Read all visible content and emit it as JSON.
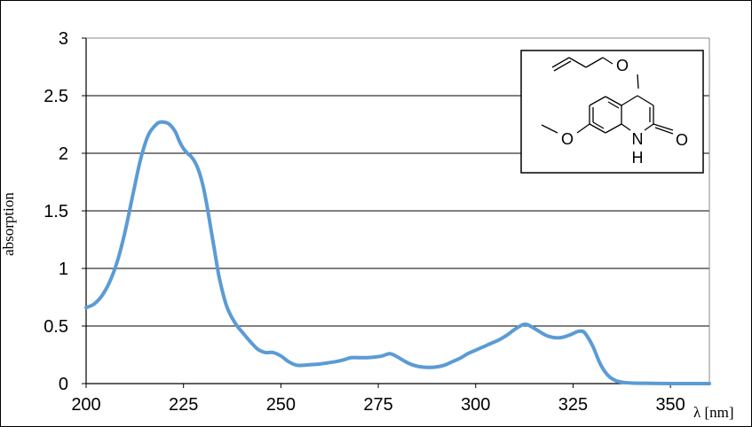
{
  "chart_data": {
    "type": "line",
    "title": "",
    "xlabel": "λ [nm]",
    "ylabel": "absorption",
    "xlim": [
      200,
      360
    ],
    "ylim": [
      0,
      3
    ],
    "x_ticks": [
      200,
      225,
      250,
      275,
      300,
      325,
      350
    ],
    "y_ticks": [
      0,
      0.5,
      1,
      1.5,
      2,
      2.5,
      3
    ],
    "y_tick_labels": [
      "0",
      "0.5",
      "1",
      "1.5",
      "2",
      "2.5",
      "3"
    ],
    "grid": "horizontal",
    "line_color": "#5b9bd5",
    "series": [
      {
        "x": [
          200,
          202,
          204,
          206,
          208,
          210,
          212,
          214,
          216,
          218,
          219,
          220,
          221,
          222,
          223,
          224,
          225,
          226,
          227,
          228,
          229,
          230,
          231,
          232,
          233,
          234,
          235,
          236,
          237,
          238,
          239,
          240,
          242,
          244,
          246,
          248,
          250,
          252,
          254,
          256,
          258,
          260,
          262,
          264,
          266,
          268,
          270,
          272,
          274,
          276,
          278,
          280,
          282,
          284,
          286,
          288,
          290,
          292,
          294,
          296,
          298,
          300,
          302,
          304,
          306,
          308,
          310,
          312,
          313,
          314,
          316,
          318,
          320,
          322,
          324,
          326,
          327,
          328,
          330,
          332,
          334,
          336,
          338,
          340,
          345,
          350,
          355,
          360
        ],
        "y": [
          0.66,
          0.69,
          0.76,
          0.88,
          1.06,
          1.32,
          1.64,
          1.95,
          2.16,
          2.25,
          2.27,
          2.27,
          2.26,
          2.23,
          2.18,
          2.1,
          2.04,
          2.0,
          1.97,
          1.92,
          1.84,
          1.72,
          1.55,
          1.35,
          1.15,
          0.95,
          0.8,
          0.68,
          0.6,
          0.54,
          0.49,
          0.45,
          0.37,
          0.3,
          0.27,
          0.27,
          0.24,
          0.19,
          0.16,
          0.16,
          0.165,
          0.17,
          0.18,
          0.19,
          0.205,
          0.225,
          0.225,
          0.225,
          0.23,
          0.24,
          0.26,
          0.23,
          0.19,
          0.16,
          0.145,
          0.14,
          0.145,
          0.16,
          0.19,
          0.22,
          0.26,
          0.29,
          0.32,
          0.35,
          0.38,
          0.42,
          0.47,
          0.51,
          0.515,
          0.5,
          0.46,
          0.42,
          0.4,
          0.4,
          0.42,
          0.45,
          0.455,
          0.44,
          0.33,
          0.17,
          0.07,
          0.025,
          0.01,
          0.005,
          0.002,
          0.0,
          0.0,
          0.0
        ]
      }
    ]
  },
  "molecule": {
    "atom_labels": {
      "o_ether": "O",
      "o_methoxy": "O",
      "o_carbonyl": "O",
      "n": "N",
      "h": "H"
    }
  }
}
